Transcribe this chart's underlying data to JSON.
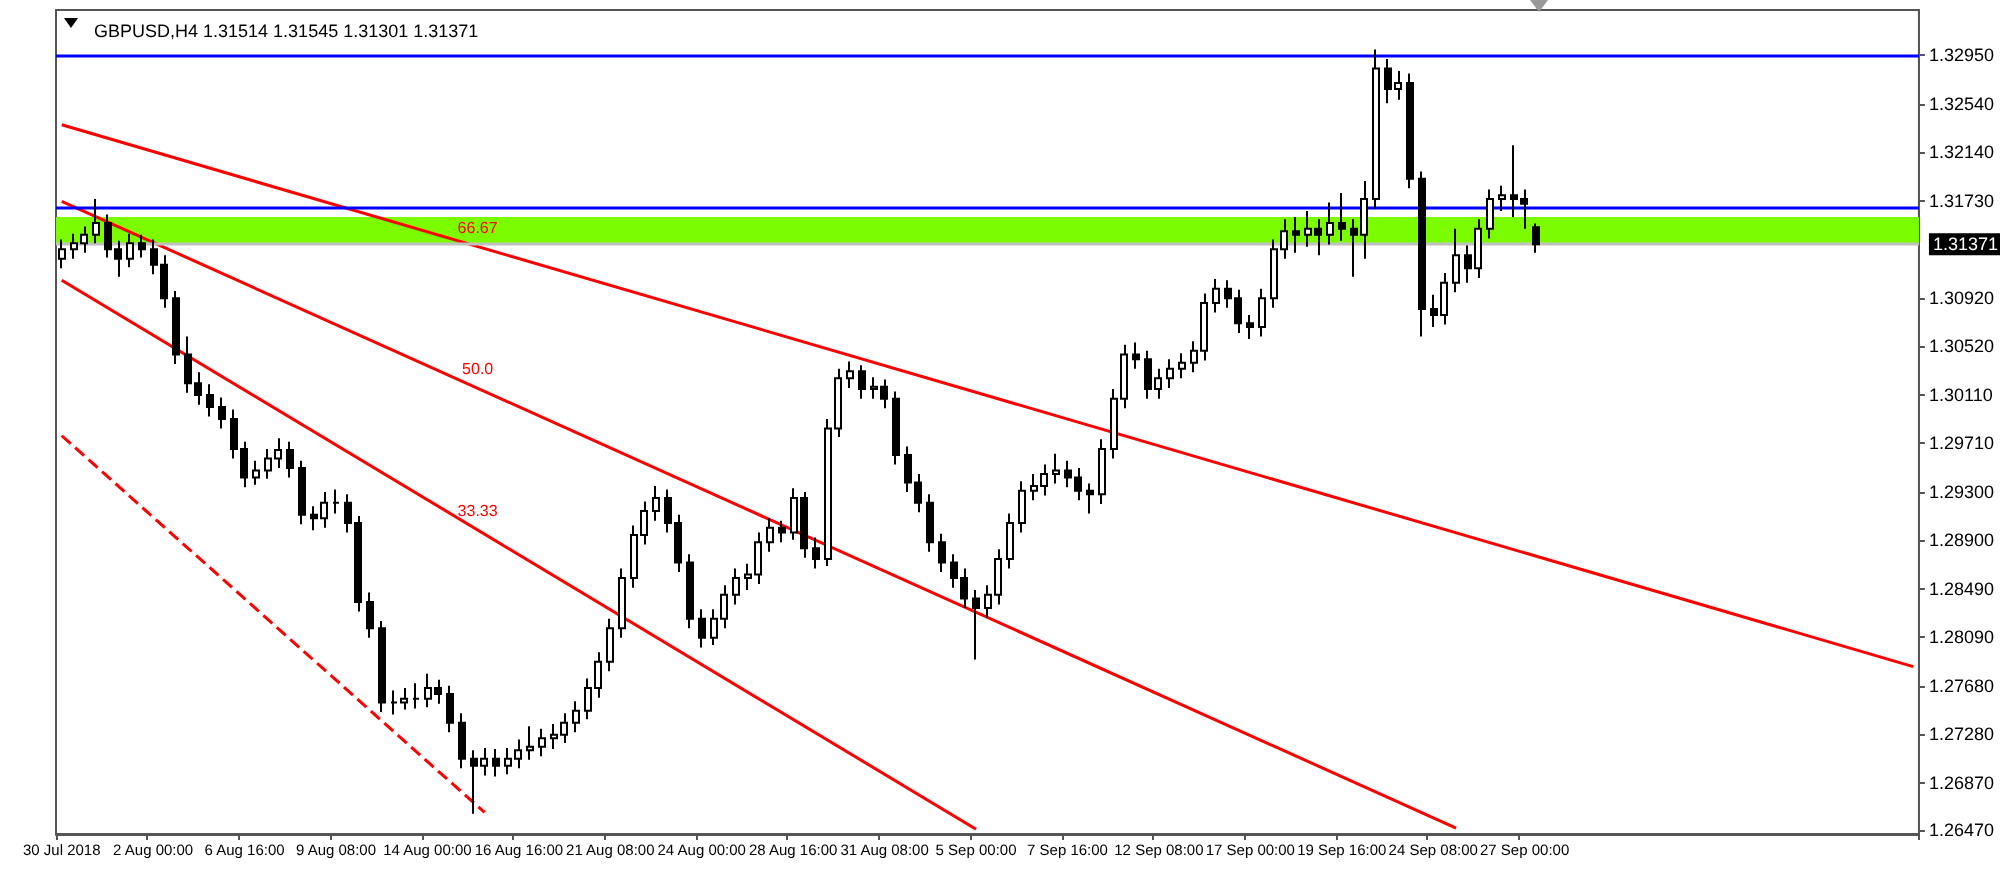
{
  "chart_data": {
    "type": "candlestick",
    "title": "GBPUSD,H4 1.31514 1.31545 1.31301 1.31371",
    "color": "#000000",
    "marker": "none",
    "categories": [
      "30 Jul 2018",
      null,
      null,
      null,
      null,
      null,
      null,
      null,
      "2 Aug 00:00",
      null,
      null,
      null,
      null,
      null,
      null,
      null,
      "6 Aug 16:00",
      null,
      null,
      null,
      null,
      null,
      null,
      null,
      "9 Aug 08:00",
      null,
      null,
      null,
      null,
      null,
      null,
      null,
      "14 Aug 00:00",
      null,
      null,
      null,
      null,
      null,
      null,
      null,
      "16 Aug 16:00",
      null,
      null,
      null,
      null,
      null,
      null,
      null,
      "21 Aug 08:00",
      null,
      null,
      null,
      null,
      null,
      null,
      null,
      "24 Aug 00:00",
      null,
      null,
      null,
      null,
      null,
      null,
      null,
      "28 Aug 16:00",
      null,
      null,
      null,
      null,
      null,
      null,
      null,
      "31 Aug 08:00",
      null,
      null,
      null,
      null,
      null,
      null,
      null,
      "5 Sep 00:00",
      null,
      null,
      null,
      null,
      null,
      null,
      null,
      "7 Sep 16:00",
      null,
      null,
      null,
      null,
      null,
      null,
      null,
      "12 Sep 08:00",
      null,
      null,
      null,
      null,
      null,
      null,
      null,
      "17 Sep 00:00",
      null,
      null,
      null,
      null,
      null,
      null,
      null,
      "19 Sep 16:00",
      null,
      null,
      null,
      null,
      null,
      null,
      null,
      "24 Sep 08:00",
      null,
      null,
      null,
      null,
      null,
      null,
      null,
      "27 Sep 00:00",
      null,
      null,
      null,
      null,
      null,
      null,
      null,
      null,
      null,
      null,
      null,
      null,
      null,
      null,
      null,
      null,
      null,
      null,
      null,
      null,
      null,
      null,
      null,
      null,
      null,
      null,
      null,
      null,
      null,
      null,
      null,
      null,
      null,
      null
    ],
    "ohlc": [
      [
        1.3125,
        1.3141,
        1.3117,
        1.3133
      ],
      [
        1.3133,
        1.3146,
        1.3125,
        1.3138
      ],
      [
        1.3138,
        1.3152,
        1.313,
        1.3145
      ],
      [
        1.3145,
        1.3175,
        1.3138,
        1.3155
      ],
      [
        1.3155,
        1.3162,
        1.3126,
        1.3133
      ],
      [
        1.3133,
        1.314,
        1.311,
        1.3125
      ],
      [
        1.3125,
        1.3146,
        1.3118,
        1.3138
      ],
      [
        1.3138,
        1.3145,
        1.3126,
        1.3133
      ],
      [
        1.3133,
        1.3141,
        1.3112,
        1.312
      ],
      [
        1.312,
        1.3128,
        1.3084,
        1.3092
      ],
      [
        1.3092,
        1.3098,
        1.3037,
        1.3045
      ],
      [
        1.3045,
        1.306,
        1.3013,
        1.3021
      ],
      [
        1.3021,
        1.303,
        1.3003,
        1.3011
      ],
      [
        1.3011,
        1.302,
        1.2993,
        1.3001
      ],
      [
        1.3001,
        1.3009,
        1.2983,
        1.2991
      ],
      [
        1.2991,
        1.2999,
        1.2958,
        1.2966
      ],
      [
        1.2966,
        1.2972,
        1.2934,
        1.2942
      ],
      [
        1.2942,
        1.2956,
        1.2936,
        1.2948
      ],
      [
        1.2948,
        1.2966,
        1.2941,
        1.2958
      ],
      [
        1.2958,
        1.2975,
        1.295,
        1.2965
      ],
      [
        1.2965,
        1.2972,
        1.2942,
        1.295
      ],
      [
        1.295,
        1.2956,
        1.2903,
        1.2911
      ],
      [
        1.2911,
        1.2918,
        1.2898,
        1.2908
      ],
      [
        1.2908,
        1.293,
        1.29,
        1.2921
      ],
      [
        1.2921,
        1.2932,
        1.2912,
        1.2921
      ],
      [
        1.2921,
        1.2928,
        1.2896,
        1.2904
      ],
      [
        1.2904,
        1.291,
        1.283,
        1.2838
      ],
      [
        1.2838,
        1.2846,
        1.2808,
        1.2816
      ],
      [
        1.2816,
        1.2822,
        1.2746,
        1.2754
      ],
      [
        1.2754,
        1.2764,
        1.2744,
        1.2754
      ],
      [
        1.2754,
        1.2766,
        1.2748,
        1.2757
      ],
      [
        1.2757,
        1.277,
        1.2749,
        1.2757
      ],
      [
        1.2757,
        1.2778,
        1.275,
        1.2766
      ],
      [
        1.2766,
        1.2773,
        1.2753,
        1.2761
      ],
      [
        1.2761,
        1.2768,
        1.2729,
        1.2737
      ],
      [
        1.2737,
        1.2745,
        1.2699,
        1.2707
      ],
      [
        1.2707,
        1.2714,
        1.2661,
        1.2701
      ],
      [
        1.2701,
        1.2716,
        1.2693,
        1.2707
      ],
      [
        1.2707,
        1.2715,
        1.2692,
        1.2701
      ],
      [
        1.2701,
        1.2716,
        1.2694,
        1.2707
      ],
      [
        1.2707,
        1.2723,
        1.2699,
        1.2714
      ],
      [
        1.2714,
        1.2734,
        1.2706,
        1.2717
      ],
      [
        1.2717,
        1.2732,
        1.2709,
        1.2724
      ],
      [
        1.2724,
        1.2736,
        1.2715,
        1.2727
      ],
      [
        1.2727,
        1.2745,
        1.272,
        1.2737
      ],
      [
        1.2737,
        1.2755,
        1.2729,
        1.2747
      ],
      [
        1.2747,
        1.2774,
        1.274,
        1.2766
      ],
      [
        1.2766,
        1.2796,
        1.2758,
        1.2788
      ],
      [
        1.2788,
        1.2824,
        1.278,
        1.2816
      ],
      [
        1.2816,
        1.2866,
        1.2808,
        1.2858
      ],
      [
        1.2858,
        1.2902,
        1.285,
        1.2894
      ],
      [
        1.2894,
        1.2922,
        1.2886,
        1.2914
      ],
      [
        1.2914,
        1.2935,
        1.2906,
        1.2925
      ],
      [
        1.2925,
        1.2932,
        1.2896,
        1.2904
      ],
      [
        1.2904,
        1.2911,
        1.2863,
        1.2871
      ],
      [
        1.2871,
        1.2878,
        1.2816,
        1.2824
      ],
      [
        1.2824,
        1.2832,
        1.28,
        1.2808
      ],
      [
        1.2808,
        1.2832,
        1.2802,
        1.2824
      ],
      [
        1.2824,
        1.2852,
        1.2816,
        1.2844
      ],
      [
        1.2844,
        1.2866,
        1.2836,
        1.2858
      ],
      [
        1.2858,
        1.287,
        1.2848,
        1.2861
      ],
      [
        1.2861,
        1.2896,
        1.2853,
        1.2888
      ],
      [
        1.2888,
        1.2908,
        1.288,
        1.29
      ],
      [
        1.29,
        1.2906,
        1.2888,
        1.2896
      ],
      [
        1.2896,
        1.2933,
        1.289,
        1.2925
      ],
      [
        1.2925,
        1.293,
        1.2875,
        1.2883
      ],
      [
        1.2883,
        1.2892,
        1.2866,
        1.2874
      ],
      [
        1.2874,
        1.2991,
        1.2868,
        1.2983
      ],
      [
        1.2983,
        1.3033,
        1.2976,
        1.3025
      ],
      [
        1.3025,
        1.3039,
        1.3017,
        1.3031
      ],
      [
        1.3031,
        1.3036,
        1.3008,
        1.3016
      ],
      [
        1.3016,
        1.3026,
        1.3008,
        1.3018
      ],
      [
        1.3018,
        1.3024,
        1.3,
        1.3008
      ],
      [
        1.3008,
        1.3014,
        1.2953,
        1.2961
      ],
      [
        1.2961,
        1.2968,
        1.293,
        1.2938
      ],
      [
        1.2938,
        1.2945,
        1.2913,
        1.2921
      ],
      [
        1.2921,
        1.2928,
        1.288,
        1.2888
      ],
      [
        1.2888,
        1.2895,
        1.2863,
        1.2871
      ],
      [
        1.2871,
        1.2878,
        1.285,
        1.2858
      ],
      [
        1.2858,
        1.2866,
        1.2833,
        1.2841
      ],
      [
        1.2841,
        1.2848,
        1.279,
        1.2833
      ],
      [
        1.2833,
        1.2852,
        1.2825,
        1.2844
      ],
      [
        1.2844,
        1.2882,
        1.2836,
        1.2874
      ],
      [
        1.2874,
        1.2912,
        1.2866,
        1.2904
      ],
      [
        1.2904,
        1.2939,
        1.2896,
        1.2931
      ],
      [
        1.2931,
        1.2945,
        1.2923,
        1.2935
      ],
      [
        1.2935,
        1.2953,
        1.2927,
        1.2945
      ],
      [
        1.2945,
        1.2962,
        1.2937,
        1.2948
      ],
      [
        1.2948,
        1.2956,
        1.2934,
        1.2942
      ],
      [
        1.2942,
        1.295,
        1.2923,
        1.2931
      ],
      [
        1.2931,
        1.2937,
        1.2912,
        1.2928
      ],
      [
        1.2928,
        1.2974,
        1.292,
        1.2966
      ],
      [
        1.2966,
        1.3016,
        1.2958,
        1.3008
      ],
      [
        1.3008,
        1.3053,
        1.3,
        1.3045
      ],
      [
        1.3045,
        1.3055,
        1.3033,
        1.3041
      ],
      [
        1.3041,
        1.3048,
        1.3008,
        1.3016
      ],
      [
        1.3016,
        1.3033,
        1.3008,
        1.3025
      ],
      [
        1.3025,
        1.3041,
        1.3017,
        1.3033
      ],
      [
        1.3033,
        1.3046,
        1.3025,
        1.3038
      ],
      [
        1.3038,
        1.3056,
        1.303,
        1.3048
      ],
      [
        1.3048,
        1.3096,
        1.304,
        1.3088
      ],
      [
        1.3088,
        1.3108,
        1.308,
        1.31
      ],
      [
        1.31,
        1.3107,
        1.3084,
        1.3092
      ],
      [
        1.3092,
        1.3099,
        1.3063,
        1.3071
      ],
      [
        1.3071,
        1.3078,
        1.3058,
        1.3068
      ],
      [
        1.3068,
        1.31,
        1.306,
        1.3092
      ],
      [
        1.3092,
        1.3141,
        1.3084,
        1.3133
      ],
      [
        1.3133,
        1.3158,
        1.3125,
        1.3148
      ],
      [
        1.3148,
        1.316,
        1.313,
        1.3145
      ],
      [
        1.3145,
        1.3165,
        1.3135,
        1.315
      ],
      [
        1.315,
        1.3158,
        1.3128,
        1.3145
      ],
      [
        1.3145,
        1.3172,
        1.3137,
        1.3155
      ],
      [
        1.3155,
        1.318,
        1.314,
        1.315
      ],
      [
        1.315,
        1.3158,
        1.311,
        1.3145
      ],
      [
        1.3145,
        1.319,
        1.3125,
        1.3175
      ],
      [
        1.3175,
        1.33,
        1.3167,
        1.3284
      ],
      [
        1.3284,
        1.3292,
        1.3255,
        1.3267
      ],
      [
        1.3267,
        1.3282,
        1.3258,
        1.3272
      ],
      [
        1.3272,
        1.328,
        1.3184,
        1.3192
      ],
      [
        1.3192,
        1.3198,
        1.306,
        1.3083
      ],
      [
        1.3083,
        1.3095,
        1.3068,
        1.3078
      ],
      [
        1.3078,
        1.3113,
        1.307,
        1.3105
      ],
      [
        1.3105,
        1.315,
        1.3097,
        1.3128
      ],
      [
        1.3128,
        1.3136,
        1.3105,
        1.3117
      ],
      [
        1.3117,
        1.3158,
        1.3109,
        1.315
      ],
      [
        1.315,
        1.3183,
        1.3142,
        1.3175
      ],
      [
        1.3175,
        1.3186,
        1.3165,
        1.3178
      ],
      [
        1.3178,
        1.322,
        1.316,
        1.3175
      ],
      [
        1.3175,
        1.3183,
        1.315,
        1.3171
      ],
      [
        1.31514,
        1.31545,
        1.31301,
        1.31371
      ],
      null,
      null,
      null,
      null,
      null,
      null,
      null,
      null,
      null,
      null,
      null,
      null,
      null,
      null,
      null,
      null,
      null,
      null,
      null,
      null,
      null,
      null,
      null,
      null,
      null,
      null,
      null,
      null,
      null,
      null,
      null,
      null,
      null
    ],
    "series": [
      {
        "type": "line",
        "color": "#ff0000",
        "line_style": "solid",
        "values": [
          1.3237,
          null,
          null,
          null,
          null,
          null,
          null,
          null,
          null,
          null,
          null,
          null,
          null,
          null,
          null,
          null,
          null,
          null,
          null,
          null,
          null,
          null,
          null,
          null,
          null,
          null,
          null,
          null,
          null,
          null,
          null,
          null,
          null,
          null,
          null,
          null,
          null,
          null,
          null,
          null,
          null,
          null,
          null,
          null,
          null,
          null,
          null,
          null,
          null,
          null,
          null,
          null,
          null,
          null,
          null,
          null,
          null,
          null,
          null,
          null,
          null,
          null,
          null,
          null,
          null,
          null,
          null,
          null,
          null,
          null,
          null,
          null,
          null,
          null,
          null,
          null,
          null,
          null,
          null,
          null,
          null,
          null,
          null,
          null,
          null,
          null,
          null,
          null,
          null,
          null,
          null,
          null,
          null,
          null,
          null,
          null,
          null,
          null,
          null,
          null,
          null,
          null,
          null,
          null,
          null,
          null,
          null,
          null,
          null,
          null,
          null,
          null,
          null,
          null,
          null,
          null,
          null,
          null,
          null,
          null,
          null,
          null,
          null,
          null,
          null,
          null,
          null,
          null,
          null,
          null,
          null,
          null,
          null,
          null,
          null,
          null,
          null,
          null,
          null,
          null,
          null,
          null,
          null,
          null,
          null,
          null,
          null,
          null,
          null,
          null,
          null,
          null,
          null,
          null,
          null,
          null,
          null,
          null,
          null,
          null,
          null,
          null,
          1.2784
        ]
      },
      {
        "type": "line",
        "color": "#ff0000",
        "line_style": "solid",
        "values": [
          1.3173,
          null,
          null,
          null,
          null,
          null,
          null,
          null,
          null,
          null,
          null,
          null,
          null,
          null,
          null,
          null,
          null,
          null,
          null,
          null,
          null,
          null,
          null,
          null,
          null,
          null,
          null,
          null,
          null,
          null,
          null,
          null,
          null,
          null,
          null,
          null,
          null,
          null,
          null,
          null,
          null,
          null,
          null,
          null,
          null,
          null,
          null,
          null,
          null,
          null,
          null,
          null,
          null,
          null,
          null,
          null,
          null,
          null,
          null,
          null,
          null,
          null,
          null,
          null,
          null,
          null,
          null,
          null,
          null,
          null,
          null,
          null,
          null,
          null,
          null,
          null,
          null,
          null,
          null,
          null,
          null,
          null,
          null,
          null,
          null,
          null,
          null,
          null,
          null,
          null,
          null,
          null,
          null,
          null,
          null,
          null,
          null,
          null,
          null,
          null,
          null,
          null,
          null,
          null,
          null,
          null,
          null,
          null,
          null,
          null,
          null,
          null,
          null,
          null,
          null,
          null,
          null,
          null,
          null,
          null,
          null,
          null,
          1.2649,
          null,
          null,
          null,
          null,
          null,
          null,
          null,
          null,
          null,
          null,
          null,
          null,
          null,
          null,
          null,
          null,
          null,
          null,
          null,
          null,
          null,
          null,
          null,
          null,
          null,
          null,
          null,
          null,
          null,
          null,
          null,
          null,
          null,
          null,
          null,
          null,
          null,
          null,
          null,
          null
        ]
      },
      {
        "type": "line",
        "color": "#ff0000",
        "line_style": "solid",
        "values": [
          1.3107,
          null,
          null,
          null,
          null,
          null,
          null,
          null,
          null,
          null,
          null,
          null,
          null,
          null,
          null,
          null,
          null,
          null,
          null,
          null,
          null,
          null,
          null,
          null,
          null,
          null,
          null,
          null,
          null,
          null,
          null,
          null,
          null,
          null,
          null,
          null,
          null,
          null,
          null,
          null,
          null,
          null,
          null,
          null,
          null,
          null,
          null,
          null,
          null,
          null,
          null,
          null,
          null,
          null,
          null,
          null,
          null,
          null,
          null,
          null,
          null,
          null,
          null,
          null,
          null,
          null,
          null,
          null,
          null,
          null,
          null,
          null,
          null,
          null,
          null,
          null,
          null,
          null,
          null,
          null,
          1.2648,
          null,
          null,
          null,
          null,
          null,
          null,
          null,
          null,
          null,
          null,
          null,
          null,
          null,
          null,
          null,
          null,
          null,
          null,
          null,
          null,
          null,
          null,
          null,
          null,
          null,
          null,
          null,
          null,
          null,
          null,
          null,
          null,
          null,
          null,
          null,
          null,
          null,
          null,
          null,
          null,
          null,
          null,
          null,
          null,
          null,
          null,
          null,
          null,
          null,
          null,
          null,
          null,
          null,
          null,
          null,
          null,
          null,
          null,
          null,
          null,
          null,
          null,
          null,
          null,
          null,
          null,
          null,
          null,
          null,
          null,
          null,
          null,
          null,
          null,
          null,
          null,
          null,
          null,
          null,
          null,
          null,
          null
        ]
      },
      {
        "type": "line",
        "color": "#ff0000",
        "line_style": "dashed",
        "values": [
          1.2977,
          null,
          null,
          null,
          null,
          null,
          null,
          null,
          null,
          null,
          null,
          null,
          null,
          null,
          null,
          null,
          null,
          null,
          null,
          null,
          null,
          null,
          null,
          null,
          null,
          null,
          null,
          null,
          null,
          null,
          null,
          null,
          null,
          null,
          null,
          null,
          null,
          1.2662,
          null,
          null,
          null,
          null,
          null,
          null,
          null,
          null,
          null,
          null,
          null,
          null,
          null,
          null,
          null,
          null,
          null,
          null,
          null,
          null,
          null,
          null,
          null,
          null,
          null,
          null,
          null,
          null,
          null,
          null,
          null,
          null,
          null,
          null,
          null,
          null,
          null,
          null,
          null,
          null,
          null,
          null,
          null,
          null,
          null,
          null,
          null,
          null,
          null,
          null,
          null,
          null,
          null,
          null,
          null,
          null,
          null,
          null,
          null,
          null,
          null,
          null,
          null,
          null,
          null,
          null,
          null,
          null,
          null,
          null,
          null,
          null,
          null,
          null,
          null,
          null,
          null,
          null,
          null,
          null,
          null,
          null,
          null,
          null,
          null,
          null,
          null,
          null,
          null,
          null,
          null,
          null,
          null,
          null,
          null,
          null,
          null,
          null,
          null,
          null,
          null,
          null,
          null,
          null,
          null,
          null,
          null,
          null,
          null,
          null,
          null,
          null,
          null,
          null,
          null,
          null,
          null,
          null,
          null,
          null,
          null,
          null,
          null,
          null,
          null
        ]
      }
    ],
    "ylim": [
      1.2644,
      1.3333
    ],
    "yticks": [
      {
        "value": 1.2647,
        "label": "1.26470"
      },
      {
        "value": 1.2687,
        "label": "1.26870"
      },
      {
        "value": 1.2728,
        "label": "1.27280"
      },
      {
        "value": 1.2768,
        "label": "1.27680"
      },
      {
        "value": 1.2809,
        "label": "1.28090"
      },
      {
        "value": 1.2849,
        "label": "1.28490"
      },
      {
        "value": 1.289,
        "label": "1.28900"
      },
      {
        "value": 1.293,
        "label": "1.29300"
      },
      {
        "value": 1.2971,
        "label": "1.29710"
      },
      {
        "value": 1.3011,
        "label": "1.30110"
      },
      {
        "value": 1.3052,
        "label": "1.30520"
      },
      {
        "value": 1.3092,
        "label": "1.30920"
      },
      {
        "value": 1.3173,
        "label": "1.31730"
      },
      {
        "value": 1.3214,
        "label": "1.32140"
      },
      {
        "value": 1.3254,
        "label": "1.32540"
      },
      {
        "value": 1.3295,
        "label": "1.32950"
      }
    ],
    "ref_lines": [
      {
        "axis": "y",
        "value": 1.3295,
        "color": "#0000ff"
      },
      {
        "axis": "y",
        "value": 1.3168,
        "color": "#0000ff"
      },
      {
        "axis": "y",
        "value": 1.31371,
        "label": "1.31371",
        "color": "#c0c0c0"
      }
    ],
    "bands": [
      {
        "axis": "y",
        "from": 1.3137,
        "to": 1.316,
        "color": "#7cfc00"
      }
    ],
    "annotations": [
      "66.67",
      "50.0",
      "33.33"
    ]
  }
}
